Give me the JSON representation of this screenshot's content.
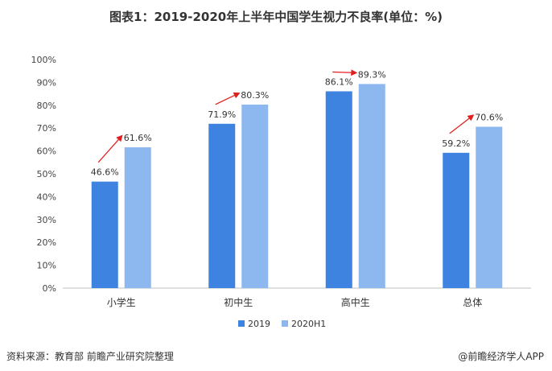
{
  "chart_data": {
    "type": "bar",
    "title": "图表1：2019-2020年上半年中国学生视力不良率(单位：%)",
    "categories": [
      "小学生",
      "初中生",
      "高中生",
      "总体"
    ],
    "series": [
      {
        "name": "2019",
        "values": [
          46.6,
          71.9,
          86.1,
          59.2
        ],
        "color": "#3f83e0"
      },
      {
        "name": "2020H1",
        "values": [
          61.6,
          80.3,
          89.3,
          70.6
        ],
        "color": "#8cb8ef"
      }
    ],
    "ylim": [
      0,
      100
    ],
    "yticks": [
      "0%",
      "10%",
      "20%",
      "30%",
      "40%",
      "50%",
      "60%",
      "70%",
      "80%",
      "90%",
      "100%"
    ],
    "value_suffix": "%",
    "arrow_color": "#e02020",
    "legend_position": "bottom",
    "grid": false
  },
  "footer": {
    "source": "资料来源：教育部 前瞻产业研究院整理",
    "brand": "@前瞻经济学人APP"
  }
}
